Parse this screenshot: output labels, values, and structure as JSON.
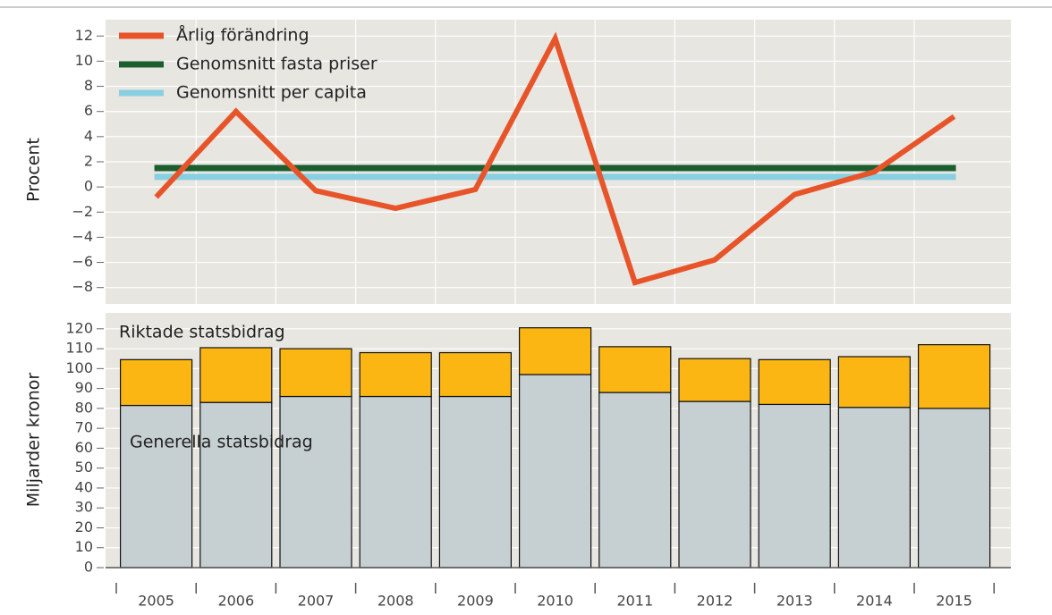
{
  "chart_data": [
    {
      "type": "line",
      "ylabel": "Procent",
      "ylim": [
        -9.3,
        13.3
      ],
      "yticks": [
        {
          "value": -8,
          "label": "−8"
        },
        {
          "value": -6,
          "label": "−6"
        },
        {
          "value": -4,
          "label": "−4"
        },
        {
          "value": -2,
          "label": "−2"
        },
        0,
        2,
        4,
        6,
        8,
        10,
        12
      ],
      "grid": true,
      "legend": "upper left",
      "series": [
        {
          "name": "Årlig förändring",
          "color": "#e8542a",
          "values": [
            -0.8,
            6.0,
            -0.3,
            -1.7,
            -0.2,
            11.8,
            -7.6,
            -5.8,
            -0.6,
            1.2,
            5.6
          ]
        },
        {
          "name": "Genomsnitt fasta priser",
          "color": "#1c5e2e",
          "values": [
            1.5,
            1.5,
            1.5,
            1.5,
            1.5,
            1.5,
            1.5,
            1.5,
            1.5,
            1.5,
            1.5
          ]
        },
        {
          "name": "Genomsnitt per capita",
          "color": "#88cfe2",
          "values": [
            0.8,
            0.8,
            0.8,
            0.8,
            0.8,
            0.8,
            0.8,
            0.8,
            0.8,
            0.8,
            0.8
          ]
        }
      ]
    },
    {
      "type": "stacked_bar",
      "ylabel": "Miljarder kronor",
      "ylim": [
        0,
        128
      ],
      "yticks": [
        0,
        10,
        20,
        30,
        40,
        50,
        60,
        70,
        80,
        90,
        100,
        110,
        120
      ],
      "grid": true,
      "categories": [
        "2005",
        "2006",
        "2007",
        "2008",
        "2009",
        "2010",
        "2011",
        "2012",
        "2013",
        "2014",
        "2015"
      ],
      "series": [
        {
          "name": "Generella statsbidrag",
          "color": "#c6cfd2",
          "values": [
            81.5,
            83,
            86,
            86,
            86,
            97,
            88,
            83.5,
            82,
            80.5,
            80
          ]
        },
        {
          "name": "Riktade statsbidrag",
          "color": "#fbb614",
          "values": [
            23,
            27.5,
            24,
            22,
            22,
            23.5,
            23,
            21.5,
            22.5,
            25.5,
            32
          ]
        }
      ]
    }
  ]
}
